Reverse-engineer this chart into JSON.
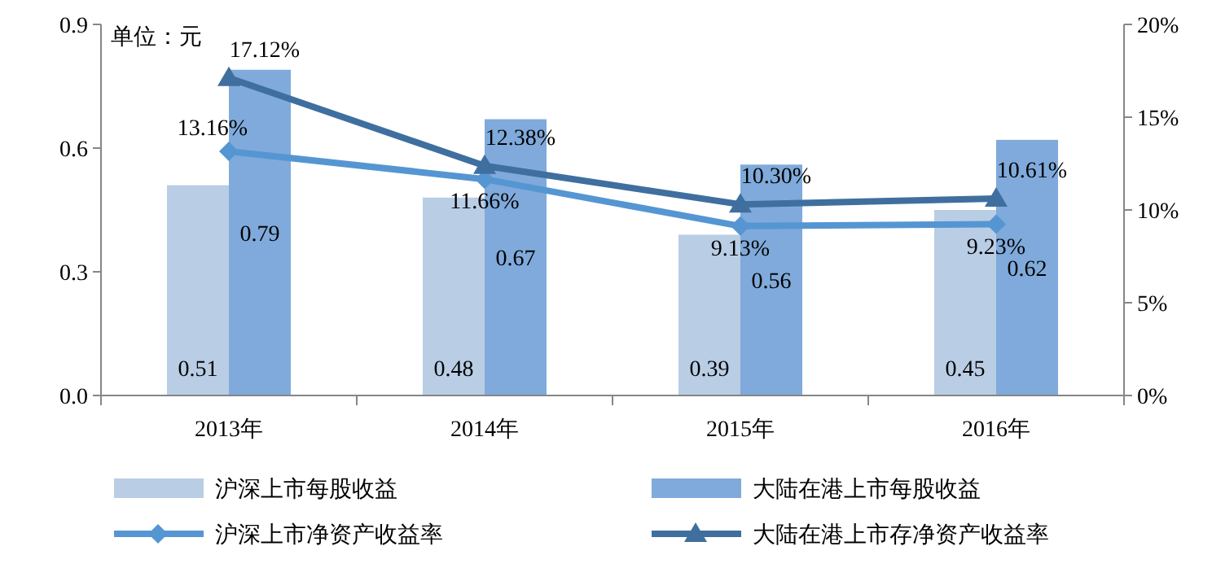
{
  "chart_data": {
    "type": "bar",
    "categories": [
      "2013年",
      "2014年",
      "2015年",
      "2016年"
    ],
    "series": [
      {
        "name": "沪深上市每股收益",
        "color": "#b9cde5",
        "values": [
          0.51,
          0.48,
          0.39,
          0.45
        ],
        "value_labels": [
          "0.51",
          "0.48",
          "0.39",
          "0.45"
        ]
      },
      {
        "name": "大陆在港上市每股收益",
        "color": "#7faadb",
        "values": [
          0.79,
          0.67,
          0.56,
          0.62
        ],
        "value_labels": [
          "0.79",
          "0.67",
          "0.56",
          "0.62"
        ]
      },
      {
        "name": "沪深上市净资产收益率",
        "type": "line",
        "axis": "y2",
        "marker": "diamond",
        "color": "#5596d2",
        "values": [
          13.16,
          11.66,
          9.13,
          9.23
        ],
        "value_labels": [
          "13.16%",
          "11.66%",
          "9.13%",
          "9.23%"
        ]
      },
      {
        "name": "大陆在港上市存净资产收益率",
        "type": "line",
        "axis": "y2",
        "marker": "triangle",
        "color": "#3f6f9f",
        "values": [
          17.12,
          12.38,
          10.3,
          10.61
        ],
        "value_labels": [
          "17.12%",
          "12.38%",
          "10.30%",
          "10.61%"
        ]
      }
    ],
    "ylim": [
      0,
      0.9
    ],
    "yticks": [
      {
        "value": 0,
        "label": "0.0"
      },
      0.3,
      0.6,
      0.9
    ],
    "y2lim": [
      0,
      20
    ],
    "y2ticks": [
      {
        "value": 0,
        "label": "0%"
      },
      {
        "value": 5,
        "label": "5%"
      },
      {
        "value": 10,
        "label": "10%"
      },
      {
        "value": 15,
        "label": "15%"
      },
      {
        "value": 20,
        "label": "20%"
      }
    ],
    "annotations": [
      "单位：元"
    ],
    "legend": "bottom",
    "grid": false
  }
}
